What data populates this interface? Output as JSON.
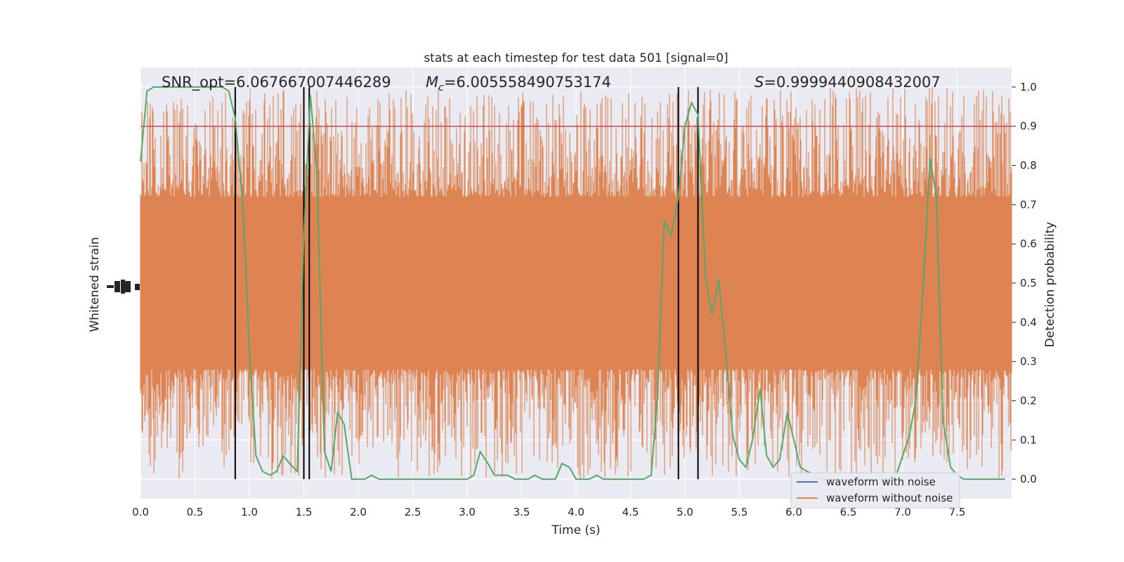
{
  "chart_data": {
    "type": "line",
    "title": "stats at each timestep for test data 501 [signal=0]",
    "xlabel": "Time (s)",
    "ylabel_left": "Whitened strain",
    "ylabel_right": "Detection probability",
    "xlim": [
      0,
      8
    ],
    "ylim_right": [
      -0.05,
      1.05
    ],
    "x_ticks": [
      "0.0",
      "0.5",
      "1.0",
      "1.5",
      "2.0",
      "2.5",
      "3.0",
      "3.5",
      "4.0",
      "4.5",
      "5.0",
      "5.5",
      "6.0",
      "6.5",
      "7.0",
      "7.5"
    ],
    "y_ticks_right": [
      "0.0",
      "0.1",
      "0.2",
      "0.3",
      "0.4",
      "0.5",
      "0.6",
      "0.7",
      "0.8",
      "0.9",
      "1.0"
    ],
    "grid": true,
    "annotations": {
      "snr": "SNR_opt=6.067667007446289",
      "mc_symbol": "M",
      "mc_sub": "c",
      "mc_value": "=6.005558490753174",
      "s_symbol": "S",
      "s_value": "=0.9999440908432007"
    },
    "threshold": 0.9,
    "vertical_lines": [
      0.87,
      1.5,
      1.55,
      4.94,
      5.12
    ],
    "legend": {
      "placement": "lower-right",
      "entries": [
        "waveform with noise",
        "waveform without noise"
      ]
    },
    "series": [
      {
        "name": "waveform with noise",
        "color": "#4c72b0",
        "note_hidden": true
      },
      {
        "name": "waveform without noise",
        "color": "#dd8452"
      },
      {
        "name": "",
        "color": "#55a868",
        "x": [
          0,
          0.06,
          0.12,
          0.19,
          0.25,
          0.31,
          0.37,
          0.44,
          0.5,
          0.56,
          0.62,
          0.69,
          0.75,
          0.81,
          0.87,
          0.94,
          1.0,
          1.06,
          1.12,
          1.19,
          1.25,
          1.31,
          1.37,
          1.44,
          1.5,
          1.56,
          1.62,
          1.69,
          1.75,
          1.81,
          1.87,
          1.94,
          2.0,
          2.06,
          2.12,
          2.19,
          2.25,
          2.31,
          2.37,
          2.44,
          2.5,
          2.56,
          2.62,
          2.69,
          2.75,
          2.81,
          2.87,
          2.94,
          3.0,
          3.06,
          3.12,
          3.19,
          3.25,
          3.31,
          3.37,
          3.44,
          3.5,
          3.56,
          3.62,
          3.69,
          3.75,
          3.81,
          3.87,
          3.94,
          4.0,
          4.06,
          4.12,
          4.19,
          4.25,
          4.31,
          4.37,
          4.44,
          4.5,
          4.56,
          4.62,
          4.69,
          4.75,
          4.81,
          4.87,
          4.94,
          5.0,
          5.06,
          5.12,
          5.19,
          5.25,
          5.31,
          5.37,
          5.44,
          5.5,
          5.56,
          5.62,
          5.69,
          5.75,
          5.81,
          5.87,
          5.94,
          6.0,
          6.06,
          6.12,
          6.19,
          6.25,
          6.31,
          6.37,
          6.44,
          6.5,
          6.56,
          6.62,
          6.69,
          6.75,
          6.81,
          6.87,
          6.94,
          7.0,
          7.06,
          7.12,
          7.19,
          7.25,
          7.31,
          7.37,
          7.44,
          7.5,
          7.56,
          7.62,
          7.69,
          7.75,
          7.81,
          7.87,
          7.94
        ],
        "values": [
          0.81,
          0.99,
          1.0,
          1.0,
          1.0,
          1.0,
          1.0,
          1.0,
          1.0,
          1.0,
          1.0,
          1.0,
          1.0,
          0.99,
          0.92,
          0.7,
          0.33,
          0.06,
          0.02,
          0.01,
          0.02,
          0.06,
          0.04,
          0.02,
          0.62,
          0.98,
          0.78,
          0.07,
          0.02,
          0.17,
          0.14,
          0.0,
          0.0,
          0.0,
          0.01,
          0.0,
          0.0,
          0.0,
          0.0,
          0.0,
          0.0,
          0.0,
          0.0,
          0.0,
          0.0,
          0.0,
          0.0,
          0.0,
          0.0,
          0.01,
          0.07,
          0.04,
          0.01,
          0.01,
          0.01,
          0.0,
          0.0,
          0.0,
          0.01,
          0.0,
          0.0,
          0.0,
          0.04,
          0.03,
          0.0,
          0.0,
          0.0,
          0.01,
          0.0,
          0.0,
          0.0,
          0.0,
          0.0,
          0.0,
          0.0,
          0.01,
          0.22,
          0.66,
          0.62,
          0.72,
          0.9,
          0.96,
          0.93,
          0.51,
          0.42,
          0.51,
          0.34,
          0.11,
          0.05,
          0.03,
          0.1,
          0.23,
          0.06,
          0.03,
          0.05,
          0.17,
          0.1,
          0.03,
          0.02,
          0.01,
          0.0,
          0.0,
          0.0,
          0.0,
          0.0,
          0.0,
          0.0,
          0.0,
          0.0,
          0.0,
          0.0,
          0.01,
          0.06,
          0.11,
          0.2,
          0.5,
          0.82,
          0.72,
          0.15,
          0.03,
          0.01,
          0.0,
          0.0,
          0.0,
          0.0,
          0.0,
          0.0,
          0.0
        ]
      }
    ]
  }
}
